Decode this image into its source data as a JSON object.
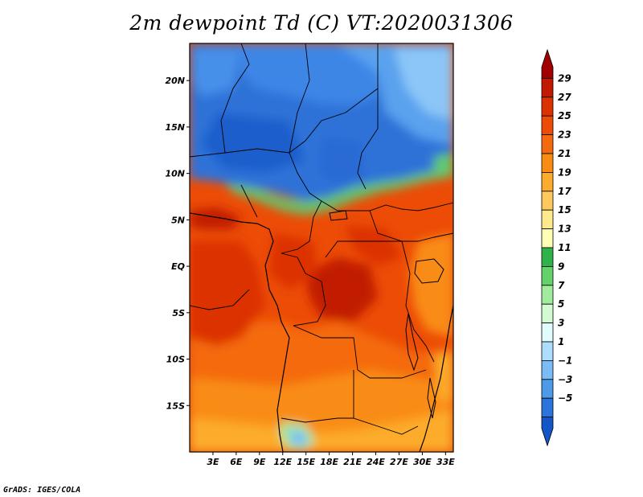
{
  "title": "2m dewpoint Td (C) VT:2020031306",
  "credit": "GrADS: IGES/COLA",
  "map": {
    "lon_range": [
      0,
      34
    ],
    "lat_range": [
      -20,
      24
    ],
    "lat_ticks": [
      {
        "label": "20N",
        "lat": 20
      },
      {
        "label": "15N",
        "lat": 15
      },
      {
        "label": "10N",
        "lat": 10
      },
      {
        "label": "5N",
        "lat": 5
      },
      {
        "label": "EQ",
        "lat": 0
      },
      {
        "label": "5S",
        "lat": -5
      },
      {
        "label": "10S",
        "lat": -10
      },
      {
        "label": "15S",
        "lat": -15
      }
    ],
    "lon_ticks": [
      {
        "label": "3E",
        "lon": 3
      },
      {
        "label": "6E",
        "lon": 6
      },
      {
        "label": "9E",
        "lon": 9
      },
      {
        "label": "12E",
        "lon": 12
      },
      {
        "label": "15E",
        "lon": 15
      },
      {
        "label": "18E",
        "lon": 18
      },
      {
        "label": "21E",
        "lon": 21
      },
      {
        "label": "24E",
        "lon": 24
      },
      {
        "label": "27E",
        "lon": 27
      },
      {
        "label": "30E",
        "lon": 30
      },
      {
        "label": "33E",
        "lon": 33
      }
    ]
  },
  "colorbar": {
    "labels": [
      "29",
      "27",
      "25",
      "23",
      "21",
      "19",
      "17",
      "15",
      "13",
      "11",
      "9",
      "7",
      "5",
      "3",
      "1",
      "−1",
      "−3",
      "−5"
    ],
    "colors": [
      "#a00000",
      "#c11a00",
      "#dc3200",
      "#ec4c06",
      "#f46a0e",
      "#f98c14",
      "#fcac2c",
      "#fdc95c",
      "#feea8c",
      "#fefeb4",
      "#2fb24a",
      "#63d26a",
      "#a0ec9c",
      "#d4fad2",
      "#e0fcfc",
      "#aedcfc",
      "#7cbcf6",
      "#4c9ae8",
      "#2a74dc",
      "#1456c8"
    ]
  }
}
